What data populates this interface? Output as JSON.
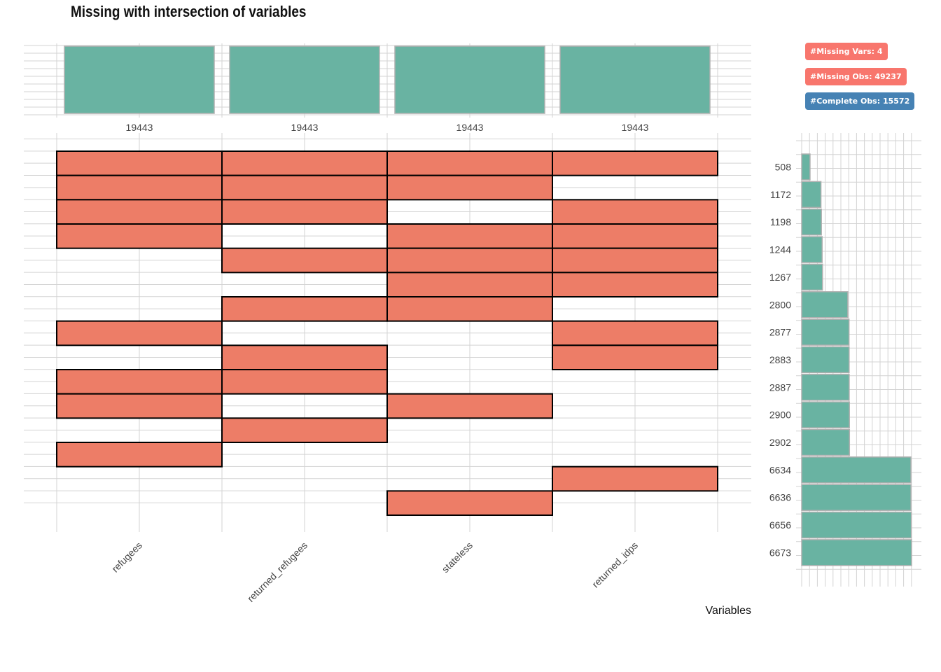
{
  "title": "Missing with intersection of variables",
  "badges": {
    "missing_vars": "#Missing Vars: 4",
    "missing_obs": "#Missing Obs: 49237",
    "complete_obs": "#Complete Obs: 15572"
  },
  "colors": {
    "tile": "#ED7D67",
    "tile_border": "#000000",
    "bar": "#69B3A2",
    "bar_border": "#B0B0B0",
    "grid": "#D3D3D3",
    "badge_missing": "#F8766D",
    "badge_complete": "#4682B4"
  },
  "chart_data": [
    {
      "type": "bar",
      "categories": [
        "refugees",
        "returned_refugees",
        "stateless",
        "returned_idps"
      ],
      "values": [
        19443,
        19443,
        19443,
        19443
      ],
      "data_labels": [
        "19443",
        "19443",
        "19443",
        "19443"
      ]
    },
    {
      "type": "heatmap",
      "xlabel": "Variables",
      "columns": [
        "refugees",
        "returned_refugees",
        "stateless",
        "returned_idps"
      ],
      "rows": [
        [
          1,
          1,
          1,
          1
        ],
        [
          1,
          1,
          1,
          0
        ],
        [
          1,
          1,
          0,
          1
        ],
        [
          1,
          0,
          1,
          1
        ],
        [
          0,
          1,
          1,
          1
        ],
        [
          0,
          0,
          1,
          1
        ],
        [
          0,
          1,
          1,
          0
        ],
        [
          1,
          0,
          0,
          1
        ],
        [
          0,
          1,
          0,
          1
        ],
        [
          1,
          1,
          0,
          0
        ],
        [
          1,
          0,
          1,
          0
        ],
        [
          0,
          1,
          0,
          0
        ],
        [
          1,
          0,
          0,
          0
        ],
        [
          0,
          0,
          0,
          1
        ],
        [
          0,
          0,
          1,
          0
        ]
      ]
    },
    {
      "type": "bar",
      "orientation": "horizontal",
      "categories": [
        "508",
        "1172",
        "1198",
        "1244",
        "1267",
        "2800",
        "2877",
        "2883",
        "2887",
        "2900",
        "2902",
        "6634",
        "6636",
        "6656",
        "6673"
      ],
      "values": [
        508,
        1172,
        1198,
        1244,
        1267,
        2800,
        2877,
        2883,
        2887,
        2900,
        2902,
        6634,
        6636,
        6656,
        6673
      ],
      "xlim": [
        0,
        7100
      ]
    }
  ]
}
